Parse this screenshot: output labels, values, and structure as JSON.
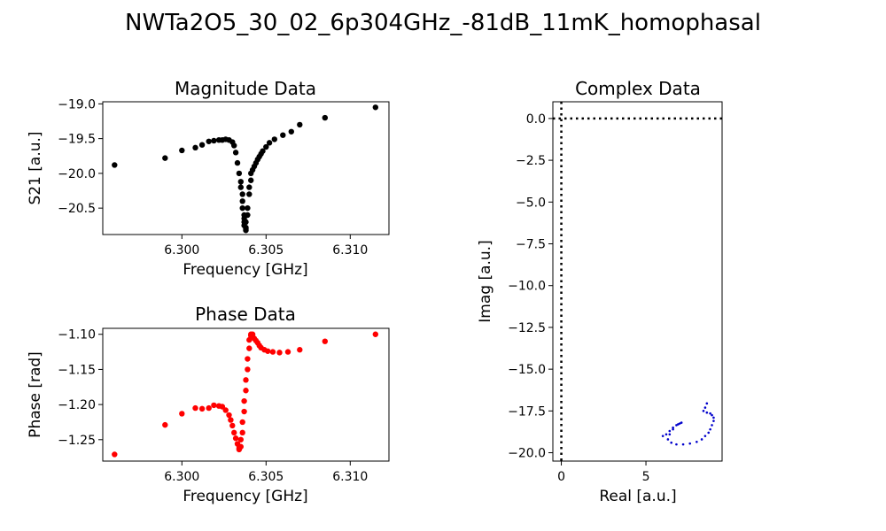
{
  "figure": {
    "title": "NWTa2O5_30_02_6p304GHz_-81dB_11mK_homophasal"
  },
  "chart_data": [
    {
      "type": "scatter",
      "title": "Magnitude Data",
      "xlabel": "Frequency [GHz]",
      "ylabel": "S21 [a.u.]",
      "xlim": [
        6.2953,
        6.3123
      ],
      "ylim": [
        -20.88,
        -18.97
      ],
      "xticks": [
        6.3,
        6.305,
        6.31
      ],
      "xtick_labels": [
        "6.300",
        "6.305",
        "6.310"
      ],
      "yticks": [
        -19.0,
        -19.5,
        -20.0,
        -20.5
      ],
      "ytick_labels": [
        "−19.0",
        "−19.5",
        "−20.0",
        "−20.5"
      ],
      "color": "#000000",
      "x": [
        6.296,
        6.299,
        6.3,
        6.3008,
        6.3012,
        6.3016,
        6.3019,
        6.3022,
        6.3024,
        6.3026,
        6.3028,
        6.303,
        6.3031,
        6.3032,
        6.3033,
        6.3034,
        6.3035,
        6.3035,
        6.3036,
        6.3036,
        6.3036,
        6.3037,
        6.3037,
        6.3037,
        6.3037,
        6.3038,
        6.3038,
        6.3038,
        6.3038,
        6.3039,
        6.3039,
        6.304,
        6.304,
        6.3041,
        6.3041,
        6.3042,
        6.3043,
        6.3044,
        6.3045,
        6.3046,
        6.3047,
        6.3048,
        6.305,
        6.3052,
        6.3055,
        6.306,
        6.3065,
        6.307,
        6.3085,
        6.3115
      ],
      "y": [
        -19.88,
        -19.78,
        -19.67,
        -19.63,
        -19.59,
        -19.54,
        -19.53,
        -19.52,
        -19.52,
        -19.51,
        -19.52,
        -19.55,
        -19.6,
        -19.7,
        -19.85,
        -20.0,
        -20.12,
        -20.2,
        -20.3,
        -20.4,
        -20.5,
        -20.6,
        -20.65,
        -20.7,
        -20.75,
        -20.8,
        -20.82,
        -20.78,
        -20.7,
        -20.6,
        -20.5,
        -20.3,
        -20.2,
        -20.1,
        -20.0,
        -19.95,
        -19.9,
        -19.85,
        -19.8,
        -19.76,
        -19.72,
        -19.68,
        -19.62,
        -19.56,
        -19.51,
        -19.45,
        -19.4,
        -19.3,
        -19.2,
        -19.05
      ]
    },
    {
      "type": "scatter",
      "title": "Phase Data",
      "xlabel": "Frequency [GHz]",
      "ylabel": "Phase [rad]",
      "xlim": [
        6.2953,
        6.3123
      ],
      "ylim": [
        -1.2805,
        -1.0915
      ],
      "xticks": [
        6.3,
        6.305,
        6.31
      ],
      "xtick_labels": [
        "6.300",
        "6.305",
        "6.310"
      ],
      "yticks": [
        -1.1,
        -1.15,
        -1.2,
        -1.25
      ],
      "ytick_labels": [
        "−1.10",
        "−1.15",
        "−1.20",
        "−1.25"
      ],
      "color": "#ff0000",
      "x": [
        6.296,
        6.299,
        6.3,
        6.3008,
        6.3012,
        6.3016,
        6.3019,
        6.3022,
        6.3024,
        6.3026,
        6.3028,
        6.3029,
        6.303,
        6.3031,
        6.3032,
        6.3033,
        6.3034,
        6.3034,
        6.3035,
        6.3035,
        6.3036,
        6.3036,
        6.3037,
        6.3037,
        6.3038,
        6.3038,
        6.3039,
        6.3039,
        6.304,
        6.304,
        6.3041,
        6.3041,
        6.3042,
        6.3042,
        6.3043,
        6.3044,
        6.3045,
        6.3046,
        6.3047,
        6.3049,
        6.3051,
        6.3054,
        6.3058,
        6.3063,
        6.307,
        6.3085,
        6.3115
      ],
      "y": [
        -1.271,
        -1.229,
        -1.213,
        -1.205,
        -1.206,
        -1.205,
        -1.201,
        -1.202,
        -1.203,
        -1.208,
        -1.215,
        -1.222,
        -1.23,
        -1.24,
        -1.248,
        -1.256,
        -1.262,
        -1.264,
        -1.26,
        -1.25,
        -1.24,
        -1.225,
        -1.21,
        -1.195,
        -1.18,
        -1.165,
        -1.15,
        -1.135,
        -1.12,
        -1.108,
        -1.102,
        -1.1,
        -1.1,
        -1.103,
        -1.106,
        -1.109,
        -1.112,
        -1.116,
        -1.119,
        -1.122,
        -1.124,
        -1.125,
        -1.126,
        -1.125,
        -1.122,
        -1.11,
        -1.1
      ]
    },
    {
      "type": "scatter",
      "title": "Complex Data",
      "xlabel": "Real [a.u.]",
      "ylabel": "Imag [a.u.]",
      "xlim": [
        -0.5,
        9.5
      ],
      "ylim": [
        -20.5,
        1.0
      ],
      "xticks": [
        0,
        5
      ],
      "xtick_labels": [
        "0",
        "5"
      ],
      "yticks": [
        0.0,
        -2.5,
        -5.0,
        -7.5,
        -10.0,
        -12.5,
        -15.0,
        -17.5,
        -20.0
      ],
      "ytick_labels": [
        "0.0",
        "−2.5",
        "−5.0",
        "−7.5",
        "−10.0",
        "−12.5",
        "−15.0",
        "−17.5",
        "−20.0"
      ],
      "reference_lines": {
        "x": 0,
        "y": 0,
        "style": "dotted"
      },
      "color": "#0000cc",
      "x": [
        6.0,
        6.2,
        6.4,
        6.6,
        6.8,
        7.0,
        7.1,
        6.9,
        6.6,
        6.4,
        6.3,
        6.5,
        6.8,
        7.2,
        7.6,
        8.0,
        8.3,
        8.5,
        8.7,
        8.8,
        8.9,
        9.0,
        9.0,
        8.9,
        8.8,
        8.6,
        8.4,
        8.5,
        8.6
      ],
      "y": [
        -19.0,
        -18.9,
        -18.7,
        -18.5,
        -18.35,
        -18.25,
        -18.2,
        -18.3,
        -18.6,
        -18.9,
        -19.2,
        -19.4,
        -19.5,
        -19.5,
        -19.45,
        -19.35,
        -19.2,
        -19.0,
        -18.8,
        -18.6,
        -18.35,
        -18.1,
        -17.9,
        -17.75,
        -17.65,
        -17.6,
        -17.5,
        -17.3,
        -17.05
      ]
    }
  ]
}
